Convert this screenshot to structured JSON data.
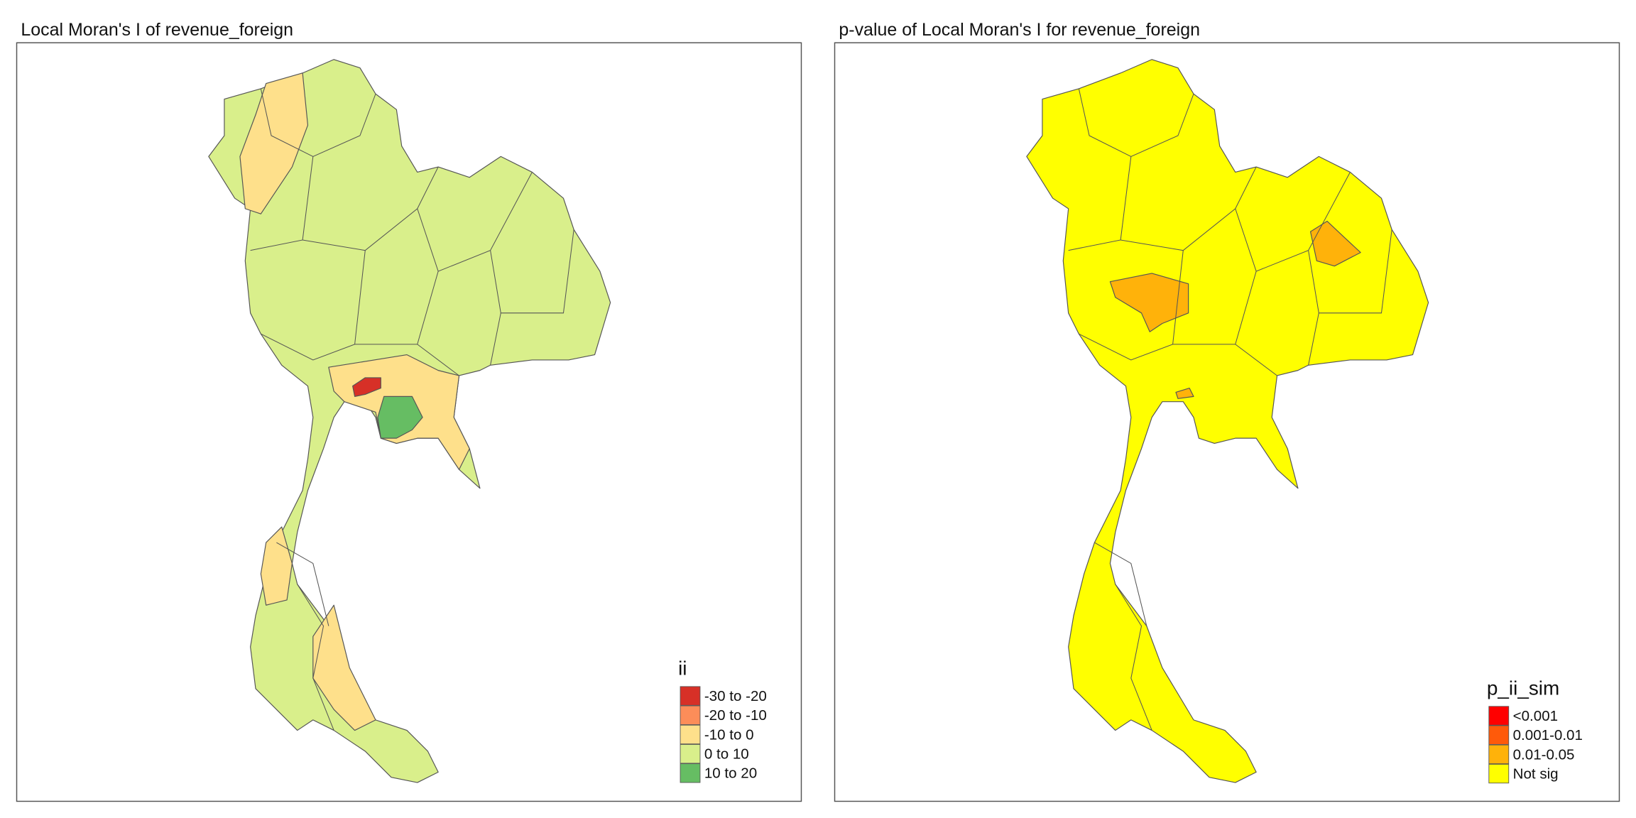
{
  "panels": [
    {
      "title": "Local Moran's I of revenue_foreign",
      "legend": {
        "title": "ii",
        "items": [
          {
            "label": "-30 to -20",
            "color": "#d73027"
          },
          {
            "label": "-20 to -10",
            "color": "#fc8d59"
          },
          {
            "label": "-10 to 0",
            "color": "#fee08b"
          },
          {
            "label": "0 to 10",
            "color": "#d9ef8b"
          },
          {
            "label": "10 to 20",
            "color": "#66bd63"
          }
        ]
      }
    },
    {
      "title": "p-value of Local Moran's I for revenue_foreign",
      "legend": {
        "title": "p_ii_sim",
        "items": [
          {
            "label": "<0.001",
            "color": "#ff0000"
          },
          {
            "label": "0.001-0.01",
            "color": "#ff5a0a"
          },
          {
            "label": "0.01-0.05",
            "color": "#ffb20a"
          },
          {
            "label": "Not sig",
            "color": "#ffff00"
          }
        ]
      }
    }
  ]
}
